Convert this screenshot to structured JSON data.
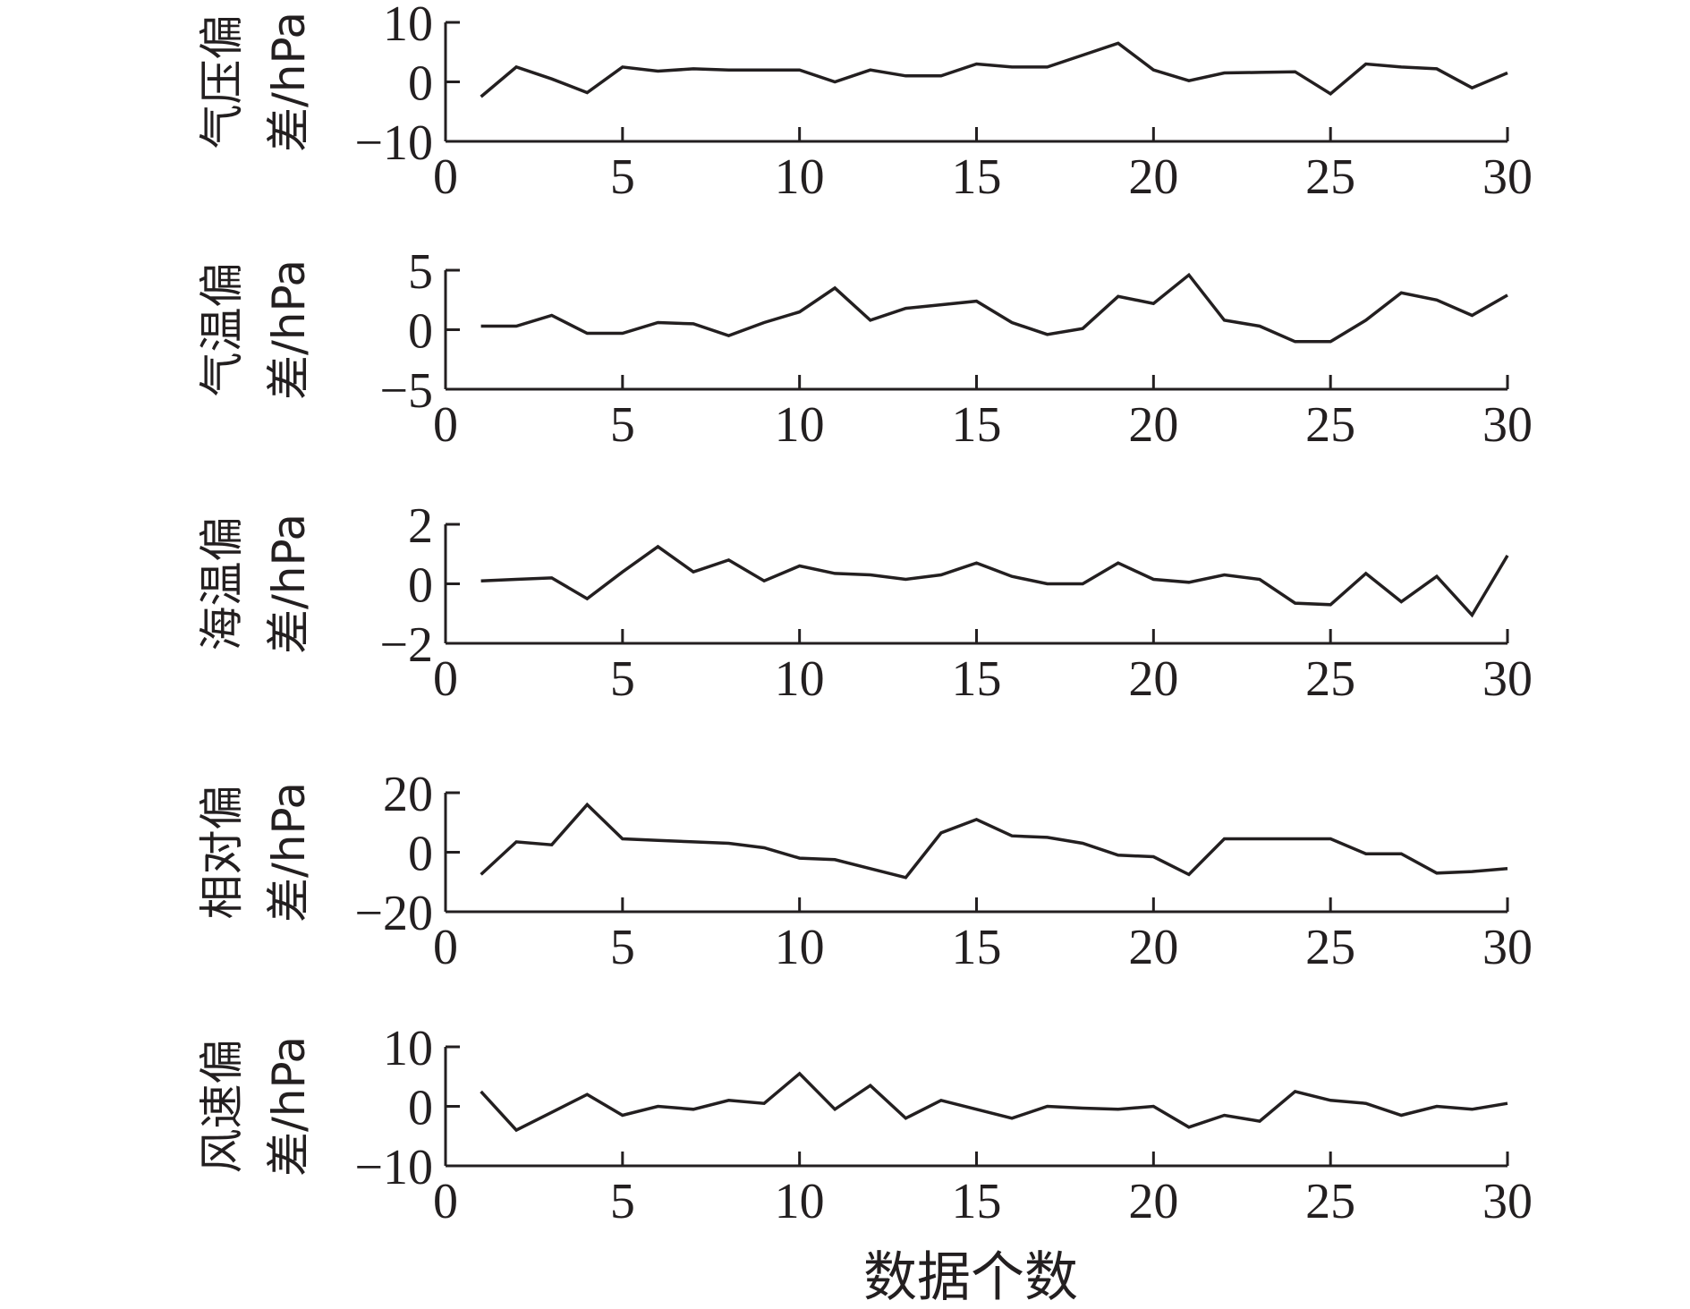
{
  "chart_data": [
    {
      "type": "line",
      "ylabel_line1": "气压偏",
      "ylabel_line2": "差/hPa",
      "xlim": [
        0,
        30
      ],
      "ylim": [
        -10,
        10
      ],
      "xticks": [
        "0",
        "5",
        "10",
        "15",
        "20",
        "25",
        "30"
      ],
      "yticks": [
        "−10",
        "0",
        "10"
      ],
      "x": [
        1,
        2,
        3,
        4,
        5,
        6,
        7,
        8,
        9,
        10,
        11,
        12,
        13,
        14,
        15,
        16,
        17,
        18,
        19,
        20,
        21,
        22,
        23,
        24,
        25,
        26,
        27,
        28,
        29,
        30
      ],
      "values": [
        -2.5,
        2.5,
        0.5,
        -1.8,
        2.5,
        1.8,
        2.2,
        2.0,
        2.0,
        2.0,
        0.0,
        2.0,
        1.0,
        1.0,
        3.0,
        2.5,
        2.5,
        4.5,
        6.5,
        2.0,
        0.2,
        1.5,
        1.6,
        1.7,
        -2.0,
        3.0,
        2.5,
        2.2,
        -1.0,
        1.5
      ]
    },
    {
      "type": "line",
      "ylabel_line1": "气温偏",
      "ylabel_line2": "差/hPa",
      "xlim": [
        0,
        30
      ],
      "ylim": [
        -5,
        5
      ],
      "xticks": [
        "0",
        "5",
        "10",
        "15",
        "20",
        "25",
        "30"
      ],
      "yticks": [
        "−5",
        "0",
        "5"
      ],
      "x": [
        1,
        2,
        3,
        4,
        5,
        6,
        7,
        8,
        9,
        10,
        11,
        12,
        13,
        14,
        15,
        16,
        17,
        18,
        19,
        20,
        21,
        22,
        23,
        24,
        25,
        26,
        27,
        28,
        29,
        30
      ],
      "values": [
        0.3,
        0.3,
        1.2,
        -0.3,
        -0.3,
        0.6,
        0.5,
        -0.5,
        0.6,
        1.5,
        3.5,
        0.8,
        1.8,
        2.1,
        2.4,
        0.6,
        -0.4,
        0.1,
        2.8,
        2.2,
        4.6,
        0.8,
        0.3,
        -1.0,
        -1.0,
        0.8,
        3.1,
        2.5,
        1.2,
        2.9
      ]
    },
    {
      "type": "line",
      "ylabel_line1": "海温偏",
      "ylabel_line2": "差/hPa",
      "xlim": [
        0,
        30
      ],
      "ylim": [
        -2,
        2
      ],
      "xticks": [
        "0",
        "5",
        "10",
        "15",
        "20",
        "25",
        "30"
      ],
      "yticks": [
        "−2",
        "0",
        "2"
      ],
      "x": [
        1,
        2,
        3,
        4,
        5,
        6,
        7,
        8,
        9,
        10,
        11,
        12,
        13,
        14,
        15,
        16,
        17,
        18,
        19,
        20,
        21,
        22,
        23,
        24,
        25,
        26,
        27,
        28,
        29,
        30
      ],
      "values": [
        0.1,
        0.15,
        0.2,
        -0.5,
        0.4,
        1.25,
        0.4,
        0.8,
        0.1,
        0.6,
        0.35,
        0.3,
        0.15,
        0.3,
        0.7,
        0.25,
        0.0,
        0.0,
        0.7,
        0.15,
        0.05,
        0.3,
        0.15,
        -0.65,
        -0.7,
        0.35,
        -0.6,
        0.25,
        -1.05,
        0.95
      ]
    },
    {
      "type": "line",
      "ylabel_line1": "相对偏",
      "ylabel_line2": "差/hPa",
      "xlim": [
        0,
        30
      ],
      "ylim": [
        -20,
        20
      ],
      "xticks": [
        "0",
        "5",
        "10",
        "15",
        "20",
        "25",
        "30"
      ],
      "yticks": [
        "−20",
        "0",
        "20"
      ],
      "x": [
        1,
        2,
        3,
        4,
        5,
        6,
        7,
        8,
        9,
        10,
        11,
        12,
        13,
        14,
        15,
        16,
        17,
        18,
        19,
        20,
        21,
        22,
        23,
        24,
        25,
        26,
        27,
        28,
        29,
        30
      ],
      "values": [
        -7.5,
        3.5,
        2.5,
        16.0,
        4.5,
        4.0,
        3.5,
        3.0,
        1.5,
        -2.0,
        -2.5,
        -5.5,
        -8.5,
        6.5,
        11.0,
        5.5,
        5.0,
        3.0,
        -1.0,
        -1.5,
        -7.5,
        4.5,
        4.5,
        4.5,
        4.5,
        -0.5,
        -0.5,
        -7.0,
        -6.5,
        -5.5
      ]
    },
    {
      "type": "line",
      "ylabel_line1": "风速偏",
      "ylabel_line2": "差/hPa",
      "xlim": [
        0,
        30
      ],
      "ylim": [
        -10,
        10
      ],
      "xticks": [
        "0",
        "5",
        "10",
        "15",
        "20",
        "25",
        "30"
      ],
      "yticks": [
        "−10",
        "0",
        "10"
      ],
      "x": [
        1,
        2,
        3,
        4,
        5,
        6,
        7,
        8,
        9,
        10,
        11,
        12,
        13,
        14,
        15,
        16,
        17,
        18,
        19,
        20,
        21,
        22,
        23,
        24,
        25,
        26,
        27,
        28,
        29,
        30
      ],
      "values": [
        2.5,
        -4.0,
        -1.0,
        2.0,
        -1.5,
        0.0,
        -0.5,
        1.0,
        0.5,
        5.5,
        -0.5,
        3.5,
        -2.0,
        1.0,
        -0.5,
        -2.0,
        0.0,
        -0.3,
        -0.5,
        0.0,
        -3.5,
        -1.5,
        -2.5,
        2.5,
        1.0,
        0.5,
        -1.5,
        0.0,
        -0.5,
        0.5
      ]
    }
  ],
  "xlabel": "数据个数"
}
